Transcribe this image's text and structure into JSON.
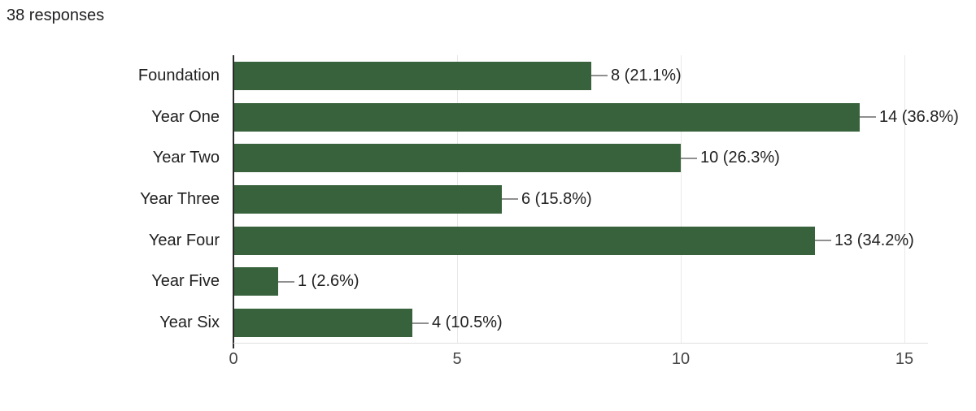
{
  "header": {
    "response_count": "38 responses"
  },
  "colors": {
    "bar": "#38623c",
    "gridline": "#e9e9e9",
    "axis": "#2b2b2b",
    "baseline": "#e0e0e0",
    "connector": "#8f8f8f",
    "label_text": "#212121",
    "tick_text": "#464646",
    "background": "#ffffff"
  },
  "chart_data": {
    "type": "bar",
    "orientation": "horizontal",
    "title": "",
    "xlabel": "",
    "ylabel": "",
    "total_responses": 38,
    "categories": [
      "Foundation",
      "Year One",
      "Year Two",
      "Year Three",
      "Year Four",
      "Year Five",
      "Year Six"
    ],
    "values": [
      8,
      14,
      10,
      6,
      13,
      1,
      4
    ],
    "value_labels": [
      "8 (21.1%)",
      "14 (36.8%)",
      "10 (26.3%)",
      "6 (15.8%)",
      "13 (34.2%)",
      "1 (2.6%)",
      "4 (10.5%)"
    ],
    "xticks": [
      0,
      5,
      10,
      15
    ],
    "xlim": [
      0,
      15
    ],
    "grid": true,
    "legend": "none"
  }
}
